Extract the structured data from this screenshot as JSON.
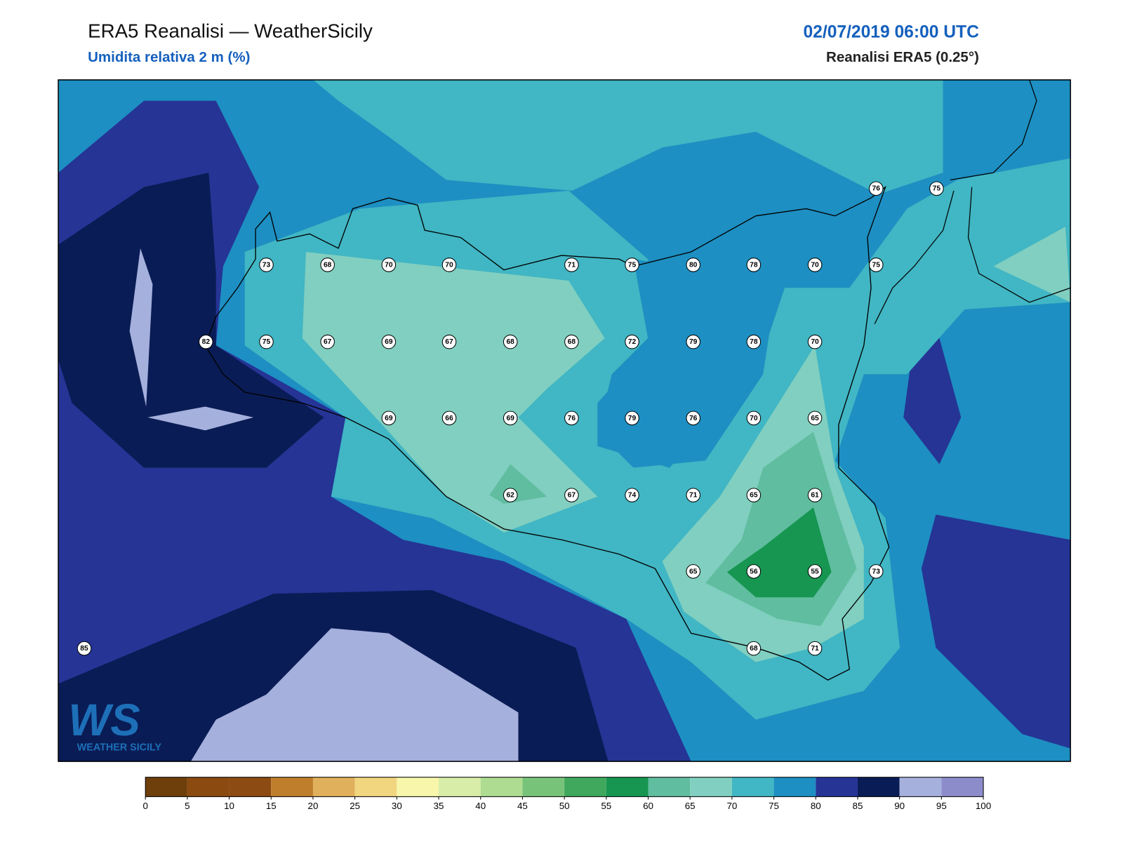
{
  "header": {
    "title": "ERA5 Reanalisi — WeatherSicily",
    "subtitle": "Umidita relativa 2 m (%)",
    "datetime": "02/07/2019 06:00 UTC",
    "source": "Reanalisi ERA5 (0.25°)"
  },
  "stations": [
    76,
    75,
    73,
    68,
    70,
    70,
    71,
    75,
    80,
    78,
    70,
    75,
    82,
    75,
    67,
    69,
    67,
    68,
    68,
    72,
    79,
    78,
    70,
    69,
    66,
    69,
    76,
    79,
    76,
    70,
    65,
    62,
    67,
    74,
    71,
    65,
    61,
    65,
    56,
    55,
    73,
    85,
    68,
    71
  ],
  "logo": {
    "mark": "WS",
    "text": "WEATHER SICILY"
  },
  "colorbar": {
    "ticks": [
      0,
      5,
      10,
      15,
      20,
      25,
      30,
      35,
      40,
      45,
      50,
      55,
      60,
      65,
      70,
      75,
      80,
      85,
      90,
      95,
      100
    ],
    "colors": [
      "#6e3f0b",
      "#8a4a10",
      "#8c4b12",
      "#bf7e2c",
      "#e1b05d",
      "#f1d57f",
      "#f8f6aa",
      "#d8eda8",
      "#aedc91",
      "#78c37a",
      "#3fa85c",
      "#169651",
      "#60bd9f",
      "#80cfc0",
      "#41b6c4",
      "#1d8fc2",
      "#253495",
      "#0a1c55",
      "#a5b0dd",
      "#8d8ccb"
    ]
  }
}
